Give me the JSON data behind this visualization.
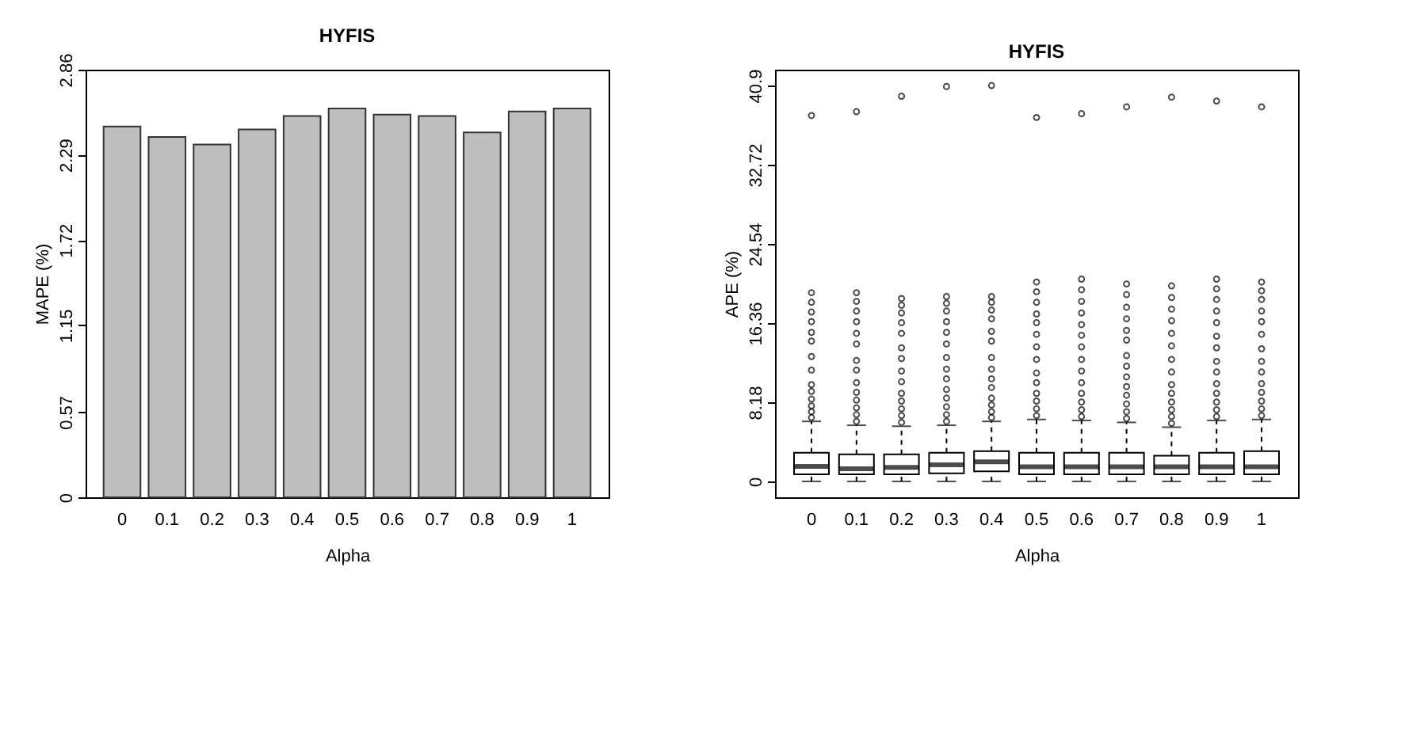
{
  "chart_data": [
    {
      "type": "bar",
      "title": "HYFIS",
      "xlabel": "Alpha",
      "ylabel": "MAPE (%)",
      "categories": [
        "0",
        "0.1",
        "0.2",
        "0.3",
        "0.4",
        "0.5",
        "0.6",
        "0.7",
        "0.8",
        "0.9",
        "1"
      ],
      "values": [
        2.48,
        2.41,
        2.36,
        2.46,
        2.55,
        2.6,
        2.56,
        2.55,
        2.44,
        2.58,
        2.6
      ],
      "color": "#bebebe",
      "ylim": [
        0,
        2.86
      ],
      "yticks": [
        0,
        0.57,
        1.15,
        1.72,
        2.29,
        2.86
      ]
    },
    {
      "type": "box",
      "title": "HYFIS",
      "xlabel": "Alpha",
      "ylabel": "APE (%)",
      "categories": [
        "0",
        "0.1",
        "0.2",
        "0.3",
        "0.4",
        "0.5",
        "0.6",
        "0.7",
        "0.8",
        "0.9",
        "1"
      ],
      "color": "#ffffff",
      "ylim": [
        -1.64,
        42.54
      ],
      "yticks": [
        0,
        8.18,
        16.36,
        24.54,
        32.72,
        40.9
      ],
      "boxes": [
        {
          "low": 0,
          "q1": 0.73,
          "median": 1.56,
          "q3": 2.96,
          "high": 6.2,
          "outliers": [
            6.6,
            7.2,
            7.8,
            8.5,
            9.3,
            10,
            11.5,
            12.9,
            14.5,
            15.4,
            16.5,
            17.5,
            18.5,
            19.5,
            37.8
          ]
        },
        {
          "low": 0,
          "q1": 0.73,
          "median": 1.3,
          "q3": 2.8,
          "high": 5.8,
          "outliers": [
            6.2,
            6.9,
            7.6,
            8.4,
            9.2,
            10.2,
            11.5,
            12.5,
            14.2,
            15.3,
            16.5,
            17.6,
            18.6,
            19.5,
            38.2
          ]
        },
        {
          "low": 0,
          "q1": 0.73,
          "median": 1.45,
          "q3": 2.8,
          "high": 5.7,
          "outliers": [
            6.1,
            6.8,
            7.5,
            8.3,
            9.1,
            10.3,
            11.4,
            12.7,
            13.8,
            15.3,
            16.4,
            17.4,
            18.2,
            18.9,
            39.8
          ]
        },
        {
          "low": 0,
          "q1": 0.83,
          "median": 1.71,
          "q3": 2.96,
          "high": 5.8,
          "outliers": [
            6.2,
            6.9,
            7.7,
            8.6,
            9.5,
            10.6,
            11.6,
            12.8,
            14.2,
            15.4,
            16.5,
            17.6,
            18.4,
            19.1,
            40.8
          ]
        },
        {
          "low": 0,
          "q1": 1.04,
          "median": 2.03,
          "q3": 3.12,
          "high": 6.2,
          "outliers": [
            6.6,
            7.2,
            7.9,
            8.6,
            9.7,
            10.6,
            11.6,
            12.8,
            14.5,
            15.5,
            16.8,
            17.7,
            18.5,
            19.1,
            40.9
          ]
        },
        {
          "low": 0,
          "q1": 0.73,
          "median": 1.5,
          "q3": 2.96,
          "high": 6.4,
          "outliers": [
            6.8,
            7.5,
            8.3,
            9.1,
            10.2,
            11.2,
            12.6,
            13.9,
            15.2,
            16.4,
            17.3,
            18.5,
            19.6,
            20.6,
            37.6
          ]
        },
        {
          "low": 0,
          "q1": 0.73,
          "median": 1.5,
          "q3": 2.96,
          "high": 6.3,
          "outliers": [
            6.7,
            7.4,
            8.2,
            9.1,
            10.2,
            11.4,
            12.6,
            13.9,
            15.1,
            16.2,
            17.4,
            18.6,
            19.8,
            20.9,
            38
          ]
        },
        {
          "low": 0,
          "q1": 0.73,
          "median": 1.5,
          "q3": 2.96,
          "high": 6.1,
          "outliers": [
            6.5,
            7.2,
            8,
            8.9,
            9.8,
            10.8,
            11.9,
            13,
            14.6,
            15.6,
            16.8,
            18,
            19.3,
            20.4,
            38.7
          ]
        },
        {
          "low": 0,
          "q1": 0.73,
          "median": 1.5,
          "q3": 2.65,
          "high": 5.6,
          "outliers": [
            6,
            6.7,
            7.4,
            8.2,
            9.1,
            10,
            11.3,
            12.6,
            14,
            15.3,
            16.6,
            17.8,
            19,
            20.2,
            39.7
          ]
        },
        {
          "low": 0,
          "q1": 0.73,
          "median": 1.5,
          "q3": 2.96,
          "high": 6.3,
          "outliers": [
            6.7,
            7.4,
            8.2,
            9.1,
            10.1,
            11.3,
            12.4,
            13.8,
            15,
            16.4,
            17.6,
            18.8,
            19.9,
            20.9,
            39.3
          ]
        },
        {
          "low": 0,
          "q1": 0.73,
          "median": 1.5,
          "q3": 3.12,
          "high": 6.4,
          "outliers": [
            6.8,
            7.5,
            8.3,
            9.2,
            10.1,
            11.3,
            12.4,
            13.7,
            15.2,
            16.5,
            17.6,
            18.8,
            19.7,
            20.6,
            38.7
          ]
        }
      ]
    }
  ]
}
